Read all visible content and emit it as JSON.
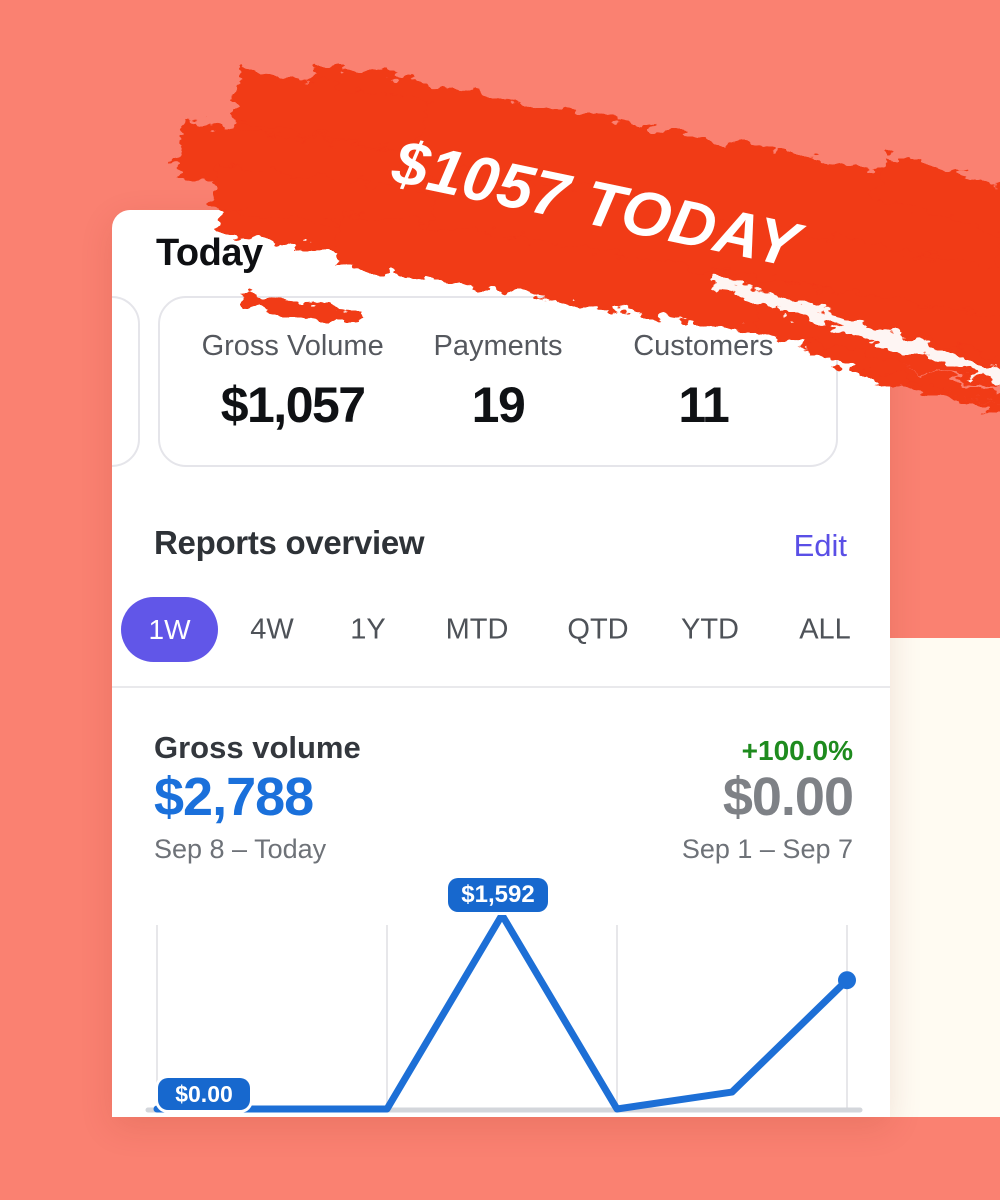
{
  "promo": {
    "badge_text": "$1057 TODAY",
    "brush_color": "#F13A17"
  },
  "page": {
    "background_color": "#FA8171"
  },
  "today_section": {
    "title": "Today",
    "stats": [
      {
        "label": "Gross Volume",
        "value": "$1,057"
      },
      {
        "label": "Payments",
        "value": "19"
      },
      {
        "label": "Customers",
        "value": "11"
      }
    ]
  },
  "reports": {
    "title": "Reports overview",
    "edit_label": "Edit",
    "accent_color": "#6156E8",
    "edit_color": "#5A4FE6",
    "tabs": [
      {
        "label": "1W",
        "selected": true
      },
      {
        "label": "4W",
        "selected": false
      },
      {
        "label": "1Y",
        "selected": false
      },
      {
        "label": "MTD",
        "selected": false
      },
      {
        "label": "QTD",
        "selected": false
      },
      {
        "label": "YTD",
        "selected": false
      },
      {
        "label": "ALL",
        "selected": false
      }
    ]
  },
  "gross_volume": {
    "title": "Gross volume",
    "change": "+100.0%",
    "change_color": "#1E8B1E",
    "current_value": "$2,788",
    "current_value_color": "#1A70DB",
    "current_period": "Sep 8 – Today",
    "previous_value": "$0.00",
    "previous_period": "Sep 1 – Sep 7"
  },
  "chart_data": {
    "type": "line",
    "series": [
      {
        "name": "Gross volume Sep 8 – Today",
        "values": [
          0,
          0,
          0,
          1592,
          0,
          139,
          1057
        ]
      }
    ],
    "ylim": [
      0,
      1592
    ],
    "point_labels": [
      {
        "index": 0,
        "text": "$0.00"
      },
      {
        "index": 3,
        "text": "$1,592"
      }
    ],
    "line_color": "#1D6FD6",
    "label_bg_color": "#1768CE",
    "grid": "vertical gridlines only",
    "legend": "none",
    "xlabel": "",
    "ylabel": ""
  }
}
